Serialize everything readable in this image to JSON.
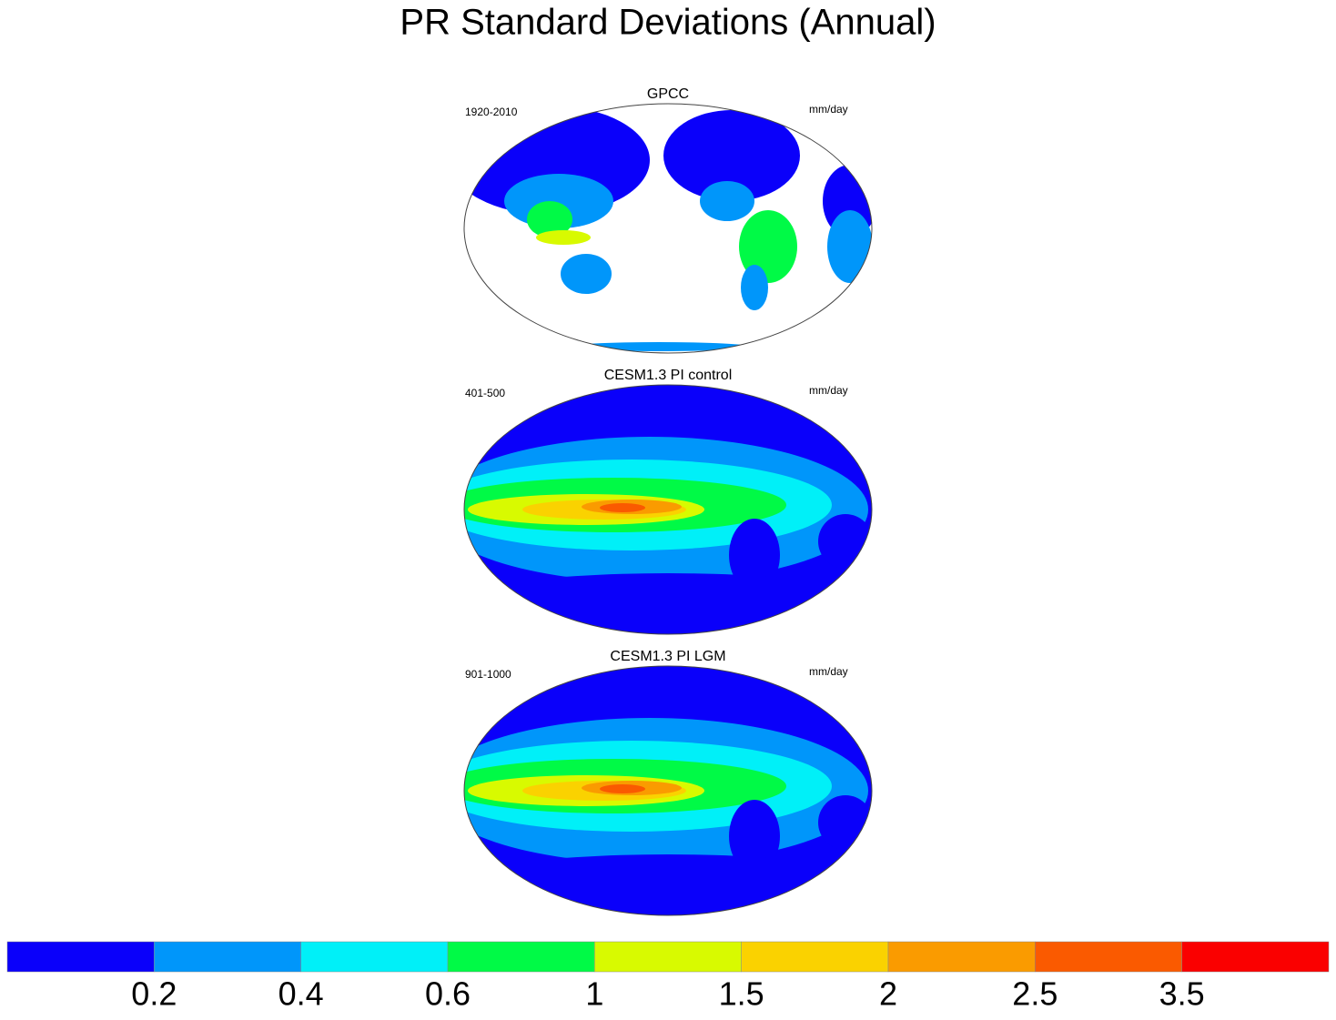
{
  "title": "PR Standard Deviations (Annual)",
  "panels": [
    {
      "title": "GPCC",
      "period": "1920-2010",
      "units": "mm/day",
      "style": "land"
    },
    {
      "title": "CESM1.3 PI control",
      "period": "401-500",
      "units": "mm/day",
      "style": "model"
    },
    {
      "title": "CESM1.3 PI LGM",
      "period": "901-1000",
      "units": "mm/day",
      "style": "model"
    }
  ],
  "colorbar": {
    "colors": [
      "#0a00fa",
      "#0096fa",
      "#00f0f8",
      "#00fa46",
      "#d8fa00",
      "#fad200",
      "#fa9b00",
      "#fa5a00",
      "#fa0000"
    ],
    "levels": [
      0.2,
      0.4,
      0.6,
      1,
      1.5,
      2,
      2.5,
      3.5
    ]
  }
}
